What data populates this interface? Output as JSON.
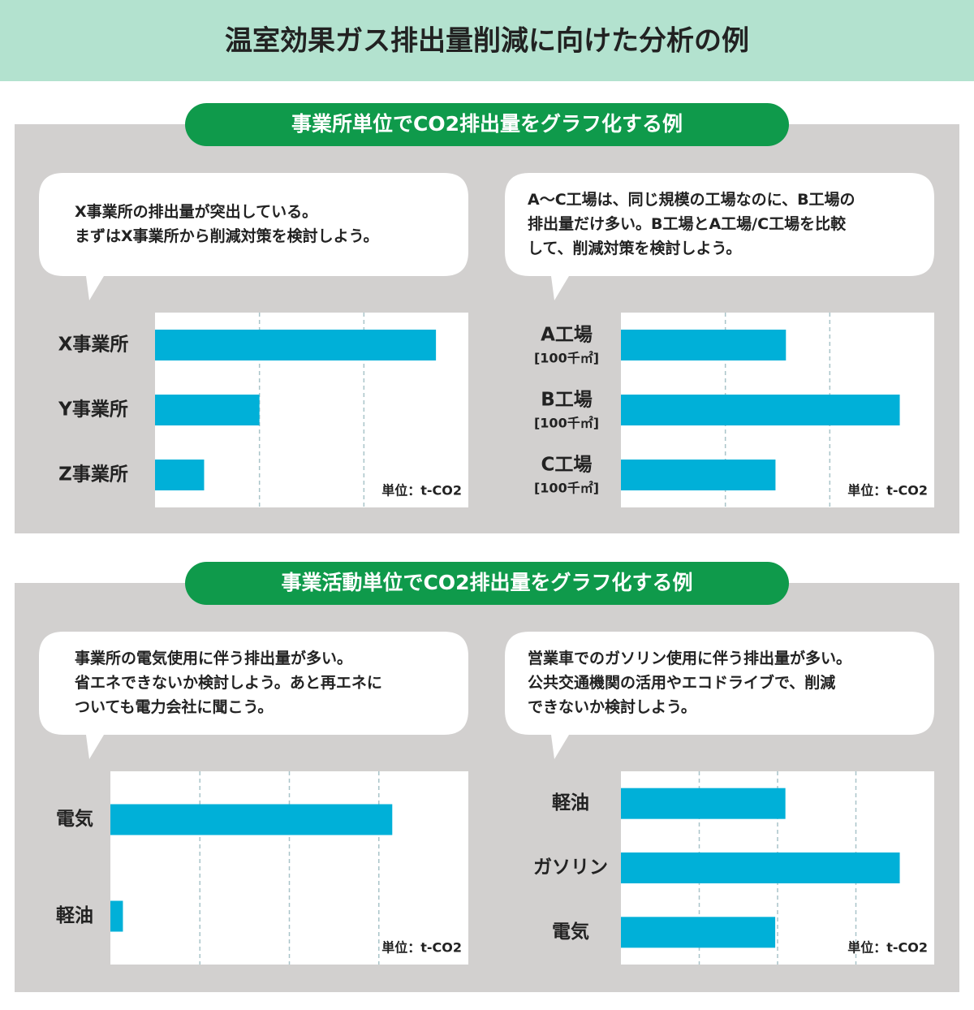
{
  "title": "温室効果ガス排出量削減に向けた分析の例",
  "sections": [
    {
      "title": "事業所単位でCO2排出量をグラフ化する例"
    },
    {
      "title": "事業活動単位でCO2排出量をグラフ化する例"
    }
  ],
  "chart_data": [
    {
      "type": "bar",
      "orientation": "horizontal",
      "comment": [
        "X事業所の排出量が突出している。",
        "まずはX事業所から削減対策を検討しよう。"
      ],
      "unit": "単位：t-CO2",
      "categories": [
        "X事業所",
        "Y事業所",
        "Z事業所"
      ],
      "values": [
        2.69,
        1.0,
        0.47
      ],
      "color": "#00b0d8",
      "xlim": [
        0,
        3
      ],
      "gridlines": [
        1,
        2
      ]
    },
    {
      "type": "bar",
      "orientation": "horizontal",
      "comment": [
        "A～C工場は、同じ規模の工場なのに、B工場の",
        "排出量だけ多い。B工場とA工場/C工場を比較",
        "して、削減対策を検討しよう。"
      ],
      "unit": "単位：t-CO2",
      "categories": [
        "A工場",
        "B工場",
        "C工場"
      ],
      "category_notes": [
        "[100千㎡]",
        "[100千㎡]",
        "[100千㎡]"
      ],
      "values": [
        1.58,
        2.67,
        1.48
      ],
      "color": "#00b0d8",
      "xlim": [
        0,
        3
      ],
      "gridlines": [
        1,
        2
      ]
    },
    {
      "type": "bar",
      "orientation": "horizontal",
      "comment": [
        "事業所の電気使用に伴う排出量が多い。",
        "省エネできないか検討しよう。あと再エネに",
        "ついても電力会社に聞こう。"
      ],
      "unit": "単位：t-CO2",
      "categories": [
        "電気",
        "軽油"
      ],
      "values": [
        3.15,
        0.14
      ],
      "color": "#00b0d8",
      "xlim": [
        0,
        4
      ],
      "gridlines": [
        1,
        2,
        3
      ]
    },
    {
      "type": "bar",
      "orientation": "horizontal",
      "comment": [
        "営業車でのガソリン使用に伴う排出量が多い。",
        "公共交通機関の活用やエコドライブで、削減",
        "できないか検討しよう。"
      ],
      "unit": "単位：t-CO2",
      "categories": [
        "軽油",
        "ガソリン",
        "電気"
      ],
      "values": [
        2.1,
        3.56,
        1.97
      ],
      "color": "#00b0d8",
      "xlim": [
        0,
        4
      ],
      "gridlines": [
        1,
        2,
        3
      ]
    }
  ]
}
